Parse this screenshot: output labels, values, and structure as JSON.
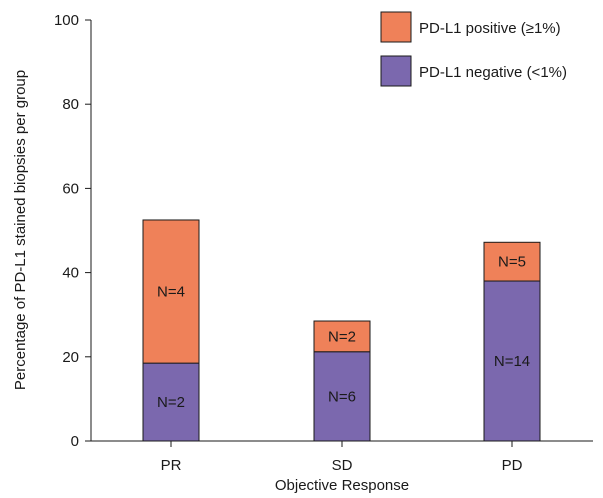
{
  "chart_data": {
    "type": "bar",
    "stacked": true,
    "title": "",
    "xlabel": "Objective Response",
    "ylabel": "Percentage of PD-L1 stained biopsies per group",
    "ylim": [
      0,
      100
    ],
    "yticks": [
      0,
      20,
      40,
      60,
      80,
      100
    ],
    "grid": false,
    "legend_position": "top-right",
    "categories": [
      "PR",
      "SD",
      "PD"
    ],
    "series": [
      {
        "name": "PD-L1 negative (<1%)",
        "color": "#7b68ae",
        "values": [
          18.5,
          21.2,
          38.0
        ],
        "labels": [
          "N=2",
          "N=6",
          "N=14"
        ]
      },
      {
        "name": "PD-L1 positive (≥1%)",
        "color": "#ef8159",
        "values": [
          34.0,
          7.3,
          9.2
        ],
        "labels": [
          "N=4",
          "N=2",
          "N=5"
        ]
      }
    ],
    "legend_order": [
      1,
      0
    ]
  }
}
